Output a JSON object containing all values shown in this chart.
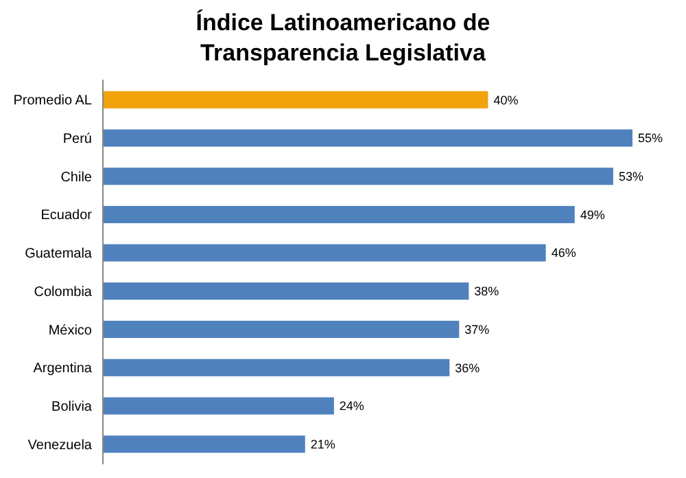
{
  "chart_data": {
    "type": "bar",
    "orientation": "horizontal",
    "relative": false,
    "title": "Índice Latinoamericano de\nTransparencia Legislativa",
    "categories": [
      "Promedio AL",
      "Perú",
      "Chile",
      "Ecuador",
      "Guatemala",
      "Colombia",
      "México",
      "Argentina",
      "Bolivia",
      "Venezuela"
    ],
    "values": [
      40,
      55,
      53,
      49,
      46,
      38,
      37,
      36,
      24,
      21
    ],
    "colors": [
      "#f0a30a",
      "#4f81bd",
      "#4f81bd",
      "#4f81bd",
      "#4f81bd",
      "#4f81bd",
      "#4f81bd",
      "#4f81bd",
      "#4f81bd",
      "#4f81bd"
    ],
    "value_labels": [
      "40%",
      "55%",
      "53%",
      "49%",
      "46%",
      "38%",
      "37%",
      "36%",
      "24%",
      "21%"
    ]
  }
}
